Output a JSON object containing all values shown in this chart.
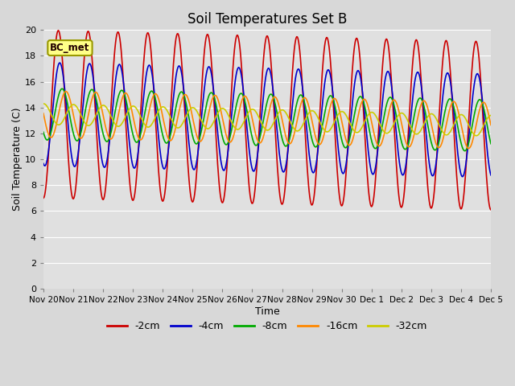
{
  "title": "Soil Temperatures Set B",
  "xlabel": "Time",
  "ylabel": "Soil Temperature (C)",
  "ylim": [
    0,
    20
  ],
  "fig_bg_color": "#d8d8d8",
  "plot_bg_color": "#e0e0e0",
  "label_box_text": "BC_met",
  "x_tick_labels": [
    "Nov 20",
    "Nov 21",
    "Nov 22",
    "Nov 23",
    "Nov 24",
    "Nov 25",
    "Nov 26",
    "Nov 27",
    "Nov 28",
    "Nov 29",
    "Nov 30",
    "Dec 1",
    "Dec 2",
    "Dec 3",
    "Dec 4",
    "Dec 5"
  ],
  "series": [
    {
      "label": "-2cm",
      "color": "#cc0000",
      "depth": 2,
      "amplitude": 6.5,
      "phase": 0.0,
      "damping": 0.0
    },
    {
      "label": "-4cm",
      "color": "#0000cc",
      "depth": 4,
      "amplitude": 4.0,
      "phase": 0.3,
      "damping": 0.0
    },
    {
      "label": "-8cm",
      "color": "#00aa00",
      "depth": 8,
      "amplitude": 2.0,
      "phase": 0.8,
      "damping": 0.0
    },
    {
      "label": "-16cm",
      "color": "#ff8800",
      "depth": 16,
      "amplitude": 1.8,
      "phase": 1.6,
      "damping": 0.0
    },
    {
      "label": "-32cm",
      "color": "#cccc00",
      "depth": 32,
      "amplitude": 0.8,
      "phase": 3.2,
      "damping": 0.0
    }
  ],
  "mean_temp": 13.5,
  "mean_trend": -0.06,
  "num_days": 15,
  "points_per_day": 48,
  "legend_colors": [
    "#cc0000",
    "#0000cc",
    "#00aa00",
    "#ff8800",
    "#cccc00"
  ],
  "legend_labels": [
    "-2cm",
    "-4cm",
    "-8cm",
    "-16cm",
    "-32cm"
  ]
}
